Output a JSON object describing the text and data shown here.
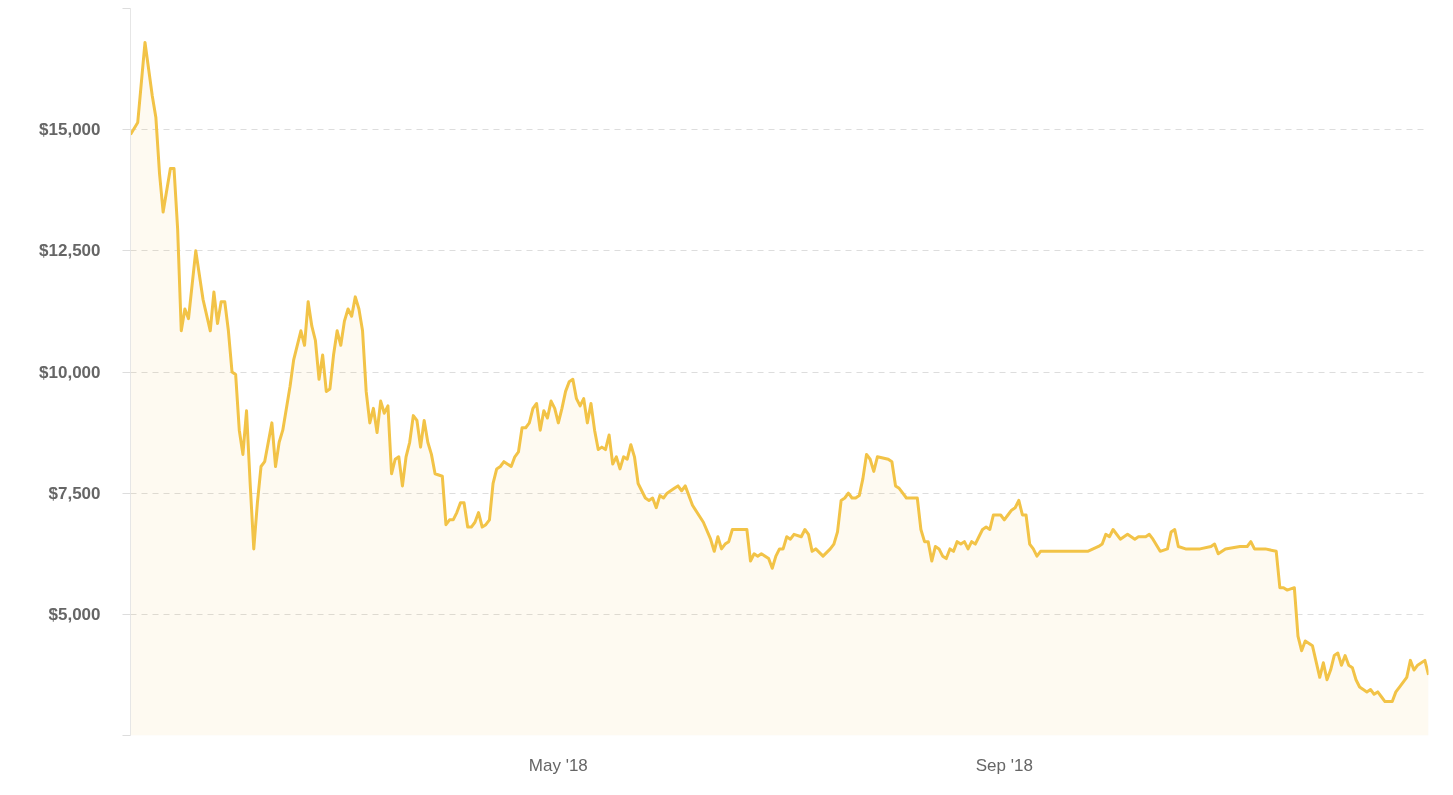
{
  "chart_data": {
    "type": "area",
    "x": [
      "2018-01-03",
      "2018-01-05",
      "2018-01-07",
      "2018-01-09",
      "2018-01-10",
      "2018-01-11",
      "2018-01-12",
      "2018-01-14",
      "2018-01-15",
      "2018-01-16",
      "2018-01-17",
      "2018-01-18",
      "2018-01-19",
      "2018-01-21",
      "2018-01-23",
      "2018-01-25",
      "2018-01-26",
      "2018-01-27",
      "2018-01-28",
      "2018-01-29",
      "2018-01-30",
      "2018-01-31",
      "2018-02-01",
      "2018-02-02",
      "2018-02-03",
      "2018-02-04",
      "2018-02-05",
      "2018-02-06",
      "2018-02-07",
      "2018-02-08",
      "2018-02-09",
      "2018-02-11",
      "2018-02-12",
      "2018-02-13",
      "2018-02-14",
      "2018-02-16",
      "2018-02-17",
      "2018-02-18",
      "2018-02-19",
      "2018-02-20",
      "2018-02-21",
      "2018-02-22",
      "2018-02-23",
      "2018-02-24",
      "2018-02-25",
      "2018-02-26",
      "2018-02-27",
      "2018-02-28",
      "2018-03-01",
      "2018-03-02",
      "2018-03-03",
      "2018-03-04",
      "2018-03-05",
      "2018-03-06",
      "2018-03-07",
      "2018-03-08",
      "2018-03-09",
      "2018-03-10",
      "2018-03-11",
      "2018-03-12",
      "2018-03-13",
      "2018-03-14",
      "2018-03-15",
      "2018-03-16",
      "2018-03-17",
      "2018-03-18",
      "2018-03-19",
      "2018-03-20",
      "2018-03-21",
      "2018-03-22",
      "2018-03-23",
      "2018-03-24",
      "2018-03-25",
      "2018-03-26",
      "2018-03-27",
      "2018-03-28",
      "2018-03-30",
      "2018-03-31",
      "2018-04-01",
      "2018-04-02",
      "2018-04-03",
      "2018-04-04",
      "2018-04-05",
      "2018-04-06",
      "2018-04-07",
      "2018-04-08",
      "2018-04-09",
      "2018-04-10",
      "2018-04-11",
      "2018-04-12",
      "2018-04-13",
      "2018-04-14",
      "2018-04-15",
      "2018-04-16",
      "2018-04-18",
      "2018-04-19",
      "2018-04-20",
      "2018-04-21",
      "2018-04-22",
      "2018-04-23",
      "2018-04-24",
      "2018-04-25",
      "2018-04-26",
      "2018-04-27",
      "2018-04-28",
      "2018-04-29",
      "2018-04-30",
      "2018-05-01",
      "2018-05-02",
      "2018-05-03",
      "2018-05-04",
      "2018-05-05",
      "2018-05-06",
      "2018-05-07",
      "2018-05-08",
      "2018-05-09",
      "2018-05-10",
      "2018-05-11",
      "2018-05-12",
      "2018-05-13",
      "2018-05-14",
      "2018-05-15",
      "2018-05-16",
      "2018-05-17",
      "2018-05-18",
      "2018-05-19",
      "2018-05-20",
      "2018-05-21",
      "2018-05-22",
      "2018-05-23",
      "2018-05-24",
      "2018-05-25",
      "2018-05-26",
      "2018-05-27",
      "2018-05-28",
      "2018-05-29",
      "2018-05-30",
      "2018-05-31",
      "2018-06-02",
      "2018-06-03",
      "2018-06-04",
      "2018-06-05",
      "2018-06-07",
      "2018-06-10",
      "2018-06-12",
      "2018-06-13",
      "2018-06-14",
      "2018-06-15",
      "2018-06-16",
      "2018-06-17",
      "2018-06-18",
      "2018-06-22",
      "2018-06-23",
      "2018-06-24",
      "2018-06-25",
      "2018-06-26",
      "2018-06-28",
      "2018-06-29",
      "2018-06-30",
      "2018-07-01",
      "2018-07-02",
      "2018-07-03",
      "2018-07-04",
      "2018-07-05",
      "2018-07-07",
      "2018-07-08",
      "2018-07-09",
      "2018-07-10",
      "2018-07-11",
      "2018-07-13",
      "2018-07-15",
      "2018-07-16",
      "2018-07-17",
      "2018-07-18",
      "2018-07-19",
      "2018-07-20",
      "2018-07-21",
      "2018-07-22",
      "2018-07-23",
      "2018-07-24",
      "2018-07-25",
      "2018-07-26",
      "2018-07-27",
      "2018-07-28",
      "2018-07-31",
      "2018-08-01",
      "2018-08-02",
      "2018-08-03",
      "2018-08-04",
      "2018-08-05",
      "2018-08-08",
      "2018-08-09",
      "2018-08-10",
      "2018-08-11",
      "2018-08-12",
      "2018-08-13",
      "2018-08-14",
      "2018-08-15",
      "2018-08-16",
      "2018-08-17",
      "2018-08-18",
      "2018-08-19",
      "2018-08-20",
      "2018-08-21",
      "2018-08-22",
      "2018-08-23",
      "2018-08-24",
      "2018-08-25",
      "2018-08-26",
      "2018-08-27",
      "2018-08-28",
      "2018-08-29",
      "2018-08-31",
      "2018-09-01",
      "2018-09-02",
      "2018-09-03",
      "2018-09-04",
      "2018-09-05",
      "2018-09-06",
      "2018-09-07",
      "2018-09-08",
      "2018-09-09",
      "2018-09-10",
      "2018-09-11",
      "2018-09-13",
      "2018-09-19",
      "2018-09-24",
      "2018-09-27",
      "2018-09-28",
      "2018-09-29",
      "2018-09-30",
      "2018-10-01",
      "2018-10-03",
      "2018-10-04",
      "2018-10-05",
      "2018-10-06",
      "2018-10-07",
      "2018-10-08",
      "2018-10-09",
      "2018-10-10",
      "2018-10-11",
      "2018-10-12",
      "2018-10-14",
      "2018-10-16",
      "2018-10-17",
      "2018-10-18",
      "2018-10-19",
      "2018-10-21",
      "2018-10-25",
      "2018-10-28",
      "2018-10-29",
      "2018-10-30",
      "2018-11-01",
      "2018-11-05",
      "2018-11-07",
      "2018-11-08",
      "2018-11-09",
      "2018-11-12",
      "2018-11-15",
      "2018-11-16",
      "2018-11-17",
      "2018-11-18",
      "2018-11-20",
      "2018-11-21",
      "2018-11-22",
      "2018-11-23",
      "2018-11-25",
      "2018-11-27",
      "2018-11-28",
      "2018-11-29",
      "2018-11-30",
      "2018-12-01",
      "2018-12-02",
      "2018-12-03",
      "2018-12-04",
      "2018-12-05",
      "2018-12-06",
      "2018-12-07",
      "2018-12-08",
      "2018-12-10",
      "2018-12-11",
      "2018-12-12",
      "2018-12-13",
      "2018-12-14",
      "2018-12-15",
      "2018-12-17",
      "2018-12-18",
      "2018-12-19",
      "2018-12-21",
      "2018-12-22",
      "2018-12-23",
      "2018-12-24",
      "2018-12-26",
      "2018-12-27"
    ],
    "series": [
      {
        "color": "#f2c347",
        "values": [
          14900,
          15150,
          16800,
          15700,
          15250,
          14100,
          13300,
          14200,
          14200,
          12950,
          10850,
          11300,
          11100,
          12500,
          11500,
          10850,
          11650,
          11000,
          11450,
          11450,
          10850,
          10000,
          9950,
          8800,
          8300,
          9200,
          7700,
          6350,
          7300,
          8050,
          8150,
          8950,
          8050,
          8550,
          8800,
          9700,
          10250,
          10550,
          10850,
          10550,
          11450,
          10950,
          10650,
          9850,
          10350,
          9600,
          9650,
          10350,
          10850,
          10550,
          11050,
          11300,
          11150,
          11550,
          11300,
          10850,
          9600,
          8950,
          9250,
          8750,
          9400,
          9150,
          9300,
          7900,
          8200,
          8250,
          7650,
          8250,
          8550,
          9100,
          9000,
          8450,
          9000,
          8550,
          8300,
          7900,
          7850,
          6850,
          6950,
          6950,
          7100,
          7300,
          7300,
          6800,
          6800,
          6900,
          7100,
          6800,
          6850,
          6950,
          7700,
          8000,
          8050,
          8150,
          8050,
          8250,
          8350,
          8850,
          8850,
          8950,
          9250,
          9350,
          8800,
          9200,
          9050,
          9400,
          9250,
          8950,
          9250,
          9600,
          9800,
          9850,
          9450,
          9300,
          9450,
          8950,
          9350,
          8800,
          8400,
          8450,
          8400,
          8700,
          8100,
          8250,
          8000,
          8250,
          8200,
          8500,
          8250,
          7700,
          7550,
          7400,
          7350,
          7400,
          7200,
          7450,
          7400,
          7500,
          7600,
          7650,
          7550,
          7650,
          7250,
          6900,
          6550,
          6300,
          6600,
          6350,
          6450,
          6500,
          6750,
          6750,
          6100,
          6250,
          6200,
          6250,
          6150,
          5950,
          6200,
          6350,
          6350,
          6600,
          6550,
          6650,
          6600,
          6750,
          6650,
          6300,
          6350,
          6200,
          6350,
          6450,
          6700,
          7350,
          7400,
          7500,
          7400,
          7400,
          7450,
          7800,
          8300,
          8200,
          7950,
          8250,
          8200,
          8150,
          7650,
          7600,
          7500,
          7400,
          7400,
          6750,
          6500,
          6500,
          6100,
          6400,
          6350,
          6200,
          6150,
          6350,
          6300,
          6500,
          6450,
          6500,
          6350,
          6500,
          6450,
          6600,
          6750,
          6800,
          6750,
          7050,
          7050,
          6950,
          7050,
          7150,
          7200,
          7350,
          7050,
          7050,
          6450,
          6350,
          6200,
          6300,
          6300,
          6300,
          6300,
          6400,
          6450,
          6650,
          6600,
          6750,
          6550,
          6600,
          6650,
          6600,
          6550,
          6600,
          6600,
          6600,
          6650,
          6550,
          6300,
          6350,
          6700,
          6750,
          6400,
          6350,
          6350,
          6400,
          6450,
          6250,
          6350,
          6400,
          6400,
          6500,
          6350,
          6350,
          6300,
          5550,
          5550,
          5500,
          5550,
          4550,
          4250,
          4450,
          4350,
          3700,
          4000,
          3650,
          3850,
          4150,
          4200,
          3950,
          4150,
          3950,
          3900,
          3650,
          3500,
          3400,
          3450,
          3350,
          3400,
          3300,
          3200,
          3200,
          3400,
          3500,
          3700,
          4050,
          3850,
          3950,
          4050,
          3750
        ]
      }
    ],
    "xlim": [
      "2018-01-03",
      "2018-12-27"
    ],
    "xticks": [
      {
        "value": "2018-05-01",
        "label": "May '18"
      },
      {
        "value": "2018-09-01",
        "label": "Sep '18"
      }
    ],
    "ylim": [
      2500,
      17500
    ],
    "yticks": [
      {
        "value": 2500,
        "label": null
      },
      {
        "value": 5000,
        "label": "$5,000"
      },
      {
        "value": 7500,
        "label": "$7,500"
      },
      {
        "value": 10000,
        "label": "$10,000"
      },
      {
        "value": 12500,
        "label": "$12,500"
      },
      {
        "value": 15000,
        "label": "$15,000"
      },
      {
        "value": 17500,
        "label": null
      }
    ],
    "grid": "y"
  }
}
